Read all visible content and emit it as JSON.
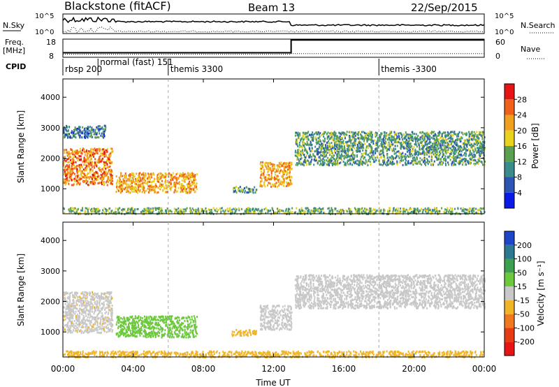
{
  "header": {
    "station": "Blackstone (fitACF)",
    "beam": "Beam 13",
    "date": "22/Sep/2015"
  },
  "nsky_panel": {
    "left_label": "N.Sky",
    "left_ticks": [
      "10^5",
      "10^0"
    ],
    "right_label": "N.Search",
    "right_ticks": [
      "10^5",
      "10^0"
    ]
  },
  "freq_panel": {
    "left_label_1": "Freq.",
    "left_label_2": "[MHz]",
    "left_ticks": [
      "18",
      "8"
    ],
    "right_label": "Nave",
    "right_ticks": [
      "60",
      "0"
    ]
  },
  "cpid": {
    "label": "CPID",
    "modes": [
      {
        "label": "rbsp 200",
        "start_hour": 0
      },
      {
        "label": "normal (fast) 151",
        "start_hour": 2.0
      },
      {
        "label": "themis 3300",
        "start_hour": 6.0
      },
      {
        "label": "themis -3300",
        "start_hour": 18.0
      }
    ]
  },
  "x_axis": {
    "label": "Time UT",
    "ticks": [
      "00:00",
      "04:00",
      "08:00",
      "12:00",
      "16:00",
      "20:00",
      "00:00"
    ],
    "range_hours": [
      0,
      24
    ]
  },
  "y_axis": {
    "label": "Slant Range [km]",
    "ticks": [
      "1000",
      "2000",
      "3000",
      "4000"
    ],
    "range_km": [
      180,
      4600
    ]
  },
  "power_colorbar": {
    "title": "Power [dB]",
    "labels": [
      "4",
      "8",
      "12",
      "16",
      "20",
      "24",
      "28"
    ],
    "colors": [
      "#0a1ae6",
      "#2d55b4",
      "#3a8c8c",
      "#5aa050",
      "#e8d21e",
      "#f0a020",
      "#f06018",
      "#e61414"
    ]
  },
  "velocity_colorbar": {
    "title": "Velocity [m s⁻¹]",
    "labels": [
      "200",
      "100",
      "50",
      "15",
      "-15",
      "-50",
      "-100",
      "-200"
    ],
    "colors": [
      "#1e46c8",
      "#2c7890",
      "#3ca050",
      "#6cc83c",
      "#c8c8c8",
      "#f0b428",
      "#f07820",
      "#e63c14",
      "#e61414"
    ]
  },
  "chart_data": {
    "type": "heatmap",
    "title": "Blackstone (fitACF)",
    "subtitle": "Beam 13",
    "xlabel": "Time UT",
    "ylabel": "Slant Range [km]",
    "xlim_hours": [
      0,
      24
    ],
    "ylim_km": [
      180,
      4600
    ],
    "freq_series": {
      "x_hours": [
        0,
        13.0,
        13.0,
        24
      ],
      "values_mhz": [
        10.5,
        10.5,
        17.5,
        17.5
      ]
    },
    "nave_series": {
      "x_hours": [
        0,
        13.0,
        13.0,
        24
      ],
      "values": [
        10,
        10,
        12,
        12
      ]
    },
    "power_regions": [
      {
        "t": [
          0.0,
          2.8
        ],
        "r": [
          1150,
          2350
        ],
        "power_db": 24
      },
      {
        "t": [
          0.0,
          2.4
        ],
        "r": [
          2700,
          3100
        ],
        "power_db": 8
      },
      {
        "t": [
          3.0,
          7.6
        ],
        "r": [
          900,
          1550
        ],
        "power_db": 22
      },
      {
        "t": [
          9.6,
          11.0
        ],
        "r": [
          900,
          1100
        ],
        "power_db": 12
      },
      {
        "t": [
          11.2,
          13.0
        ],
        "r": [
          1100,
          1900
        ],
        "power_db": 22
      },
      {
        "t": [
          13.2,
          24.0
        ],
        "r": [
          1800,
          2900
        ],
        "power_db": 12
      },
      {
        "t": [
          0.0,
          24.0
        ],
        "r": [
          200,
          400
        ],
        "power_db": 14
      }
    ],
    "velocity_regions": [
      {
        "t": [
          0.0,
          2.8
        ],
        "r": [
          1000,
          2350
        ],
        "velocity": -10
      },
      {
        "t": [
          3.0,
          7.6
        ],
        "r": [
          850,
          1550
        ],
        "velocity": 30
      },
      {
        "t": [
          9.6,
          11.0
        ],
        "r": [
          900,
          1100
        ],
        "velocity": -30
      },
      {
        "t": [
          11.2,
          13.0
        ],
        "r": [
          1100,
          1900
        ],
        "velocity": 0
      },
      {
        "t": [
          13.2,
          24.0
        ],
        "r": [
          1800,
          2900
        ],
        "velocity": 0
      },
      {
        "t": [
          0.0,
          24.0
        ],
        "r": [
          200,
          400
        ],
        "velocity": -40
      }
    ]
  }
}
